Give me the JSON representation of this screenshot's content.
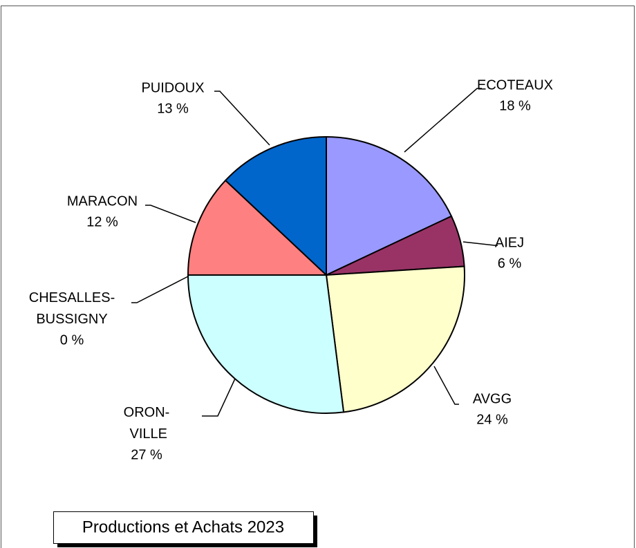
{
  "chart_data": {
    "type": "pie",
    "title": "Productions et Achats 2023",
    "categories": [
      "ECOTEAUX",
      "AIEJ",
      "AVGG",
      "ORON- VILLE",
      "CHESALLES-BUSSIGNY",
      "MARACON",
      "PUIDOUX"
    ],
    "values": [
      18,
      6,
      24,
      27,
      0,
      12,
      13
    ],
    "value_labels": [
      "18 %",
      "6 %",
      "24 %",
      "27 %",
      "0 %",
      "12 %",
      "13 %"
    ],
    "colors": [
      "#9999ff",
      "#993366",
      "#ffffcc",
      "#ccffff",
      "#660066",
      "#ff8080",
      "#0066cc"
    ]
  }
}
